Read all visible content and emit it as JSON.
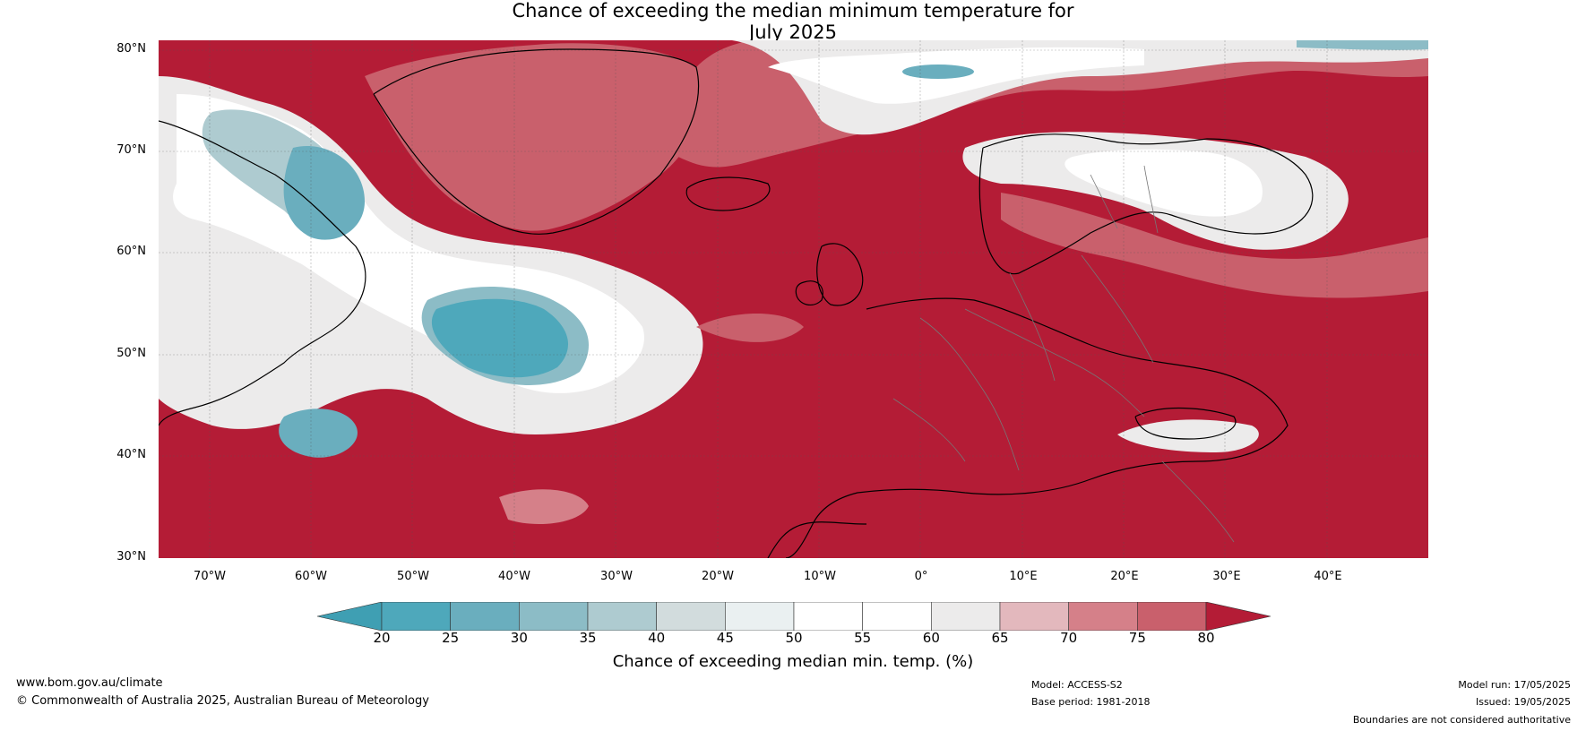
{
  "title": {
    "line1": "Chance of exceeding the median minimum temperature for",
    "line2": "July 2025"
  },
  "map": {
    "lat_labels": [
      "80°N",
      "70°N",
      "60°N",
      "50°N",
      "40°N",
      "30°N"
    ],
    "lon_labels": [
      "70°W",
      "60°W",
      "50°W",
      "40°W",
      "30°W",
      "20°W",
      "10°W",
      "0°",
      "10°E",
      "20°E",
      "30°E",
      "40°E"
    ],
    "lat_range": [
      30,
      81
    ],
    "lon_range": [
      -75,
      50
    ],
    "regions": {
      "north_atlantic": "warm",
      "labrador_sea_and_central_north_atlantic": "cool",
      "europe_and_mediterranean": "warm",
      "scandinavia_and_greenland_sea": "neutral"
    }
  },
  "colorbar": {
    "ticks": [
      "20",
      "25",
      "30",
      "35",
      "40",
      "45",
      "50",
      "55",
      "60",
      "65",
      "70",
      "75",
      "80"
    ],
    "colors": [
      "#4ea8bb",
      "#6aaebe",
      "#8cbcc6",
      "#aecbd0",
      "#d2dcdd",
      "#eaf0f1",
      "#ffffff",
      "#ffffff",
      "#ecebeb",
      "#e3b8bd",
      "#d58089",
      "#c9606c",
      "#bd3f4e"
    ],
    "low_color": "#3f9fb3",
    "high_color": "#b41c36",
    "label": "Chance of exceeding median min. temp. (%)"
  },
  "footer": {
    "website": "www.bom.gov.au/climate",
    "copyright": "© Commonwealth of Australia 2025, Australian Bureau of Meteorology",
    "model": "Model: ACCESS-S2",
    "base_period": "Base period: 1981-2018",
    "model_run": "Model run: 17/05/2025",
    "issued": "Issued: 19/05/2025",
    "disclaimer": "Boundaries are not considered authoritative"
  }
}
